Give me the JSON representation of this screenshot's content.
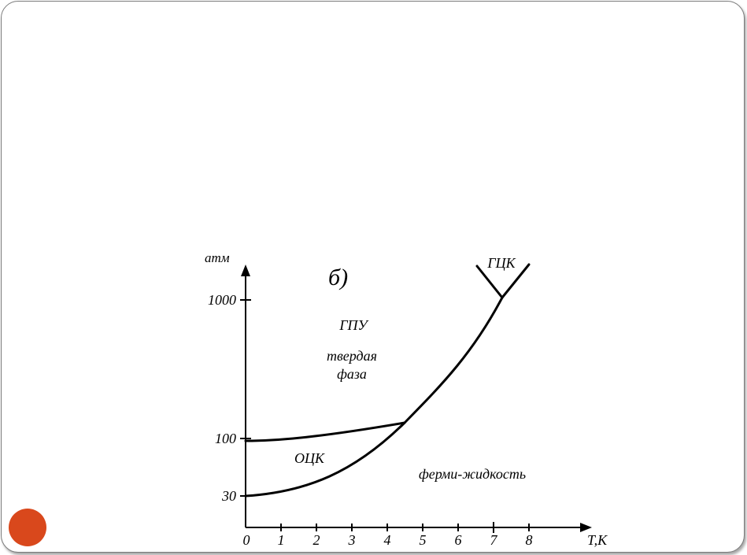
{
  "slide": {
    "accent_color": "#d9481c",
    "frame_color": "#7a7a7a"
  },
  "diagram": {
    "panel_label": "б)",
    "y_axis_unit": "атм",
    "x_axis_unit": "T,K",
    "x_ticks": [
      "0",
      "1",
      "2",
      "3",
      "4",
      "5",
      "6",
      "7",
      "8"
    ],
    "y_ticks": [
      "1000",
      "100",
      "30"
    ],
    "regions": {
      "hcp": "ГПУ",
      "solid_line1": "твердая",
      "solid_line2": "фаза",
      "bcc": "ОЦК",
      "fcc": "ГЦК",
      "fermi_liquid": "ферми-жидкость"
    }
  }
}
